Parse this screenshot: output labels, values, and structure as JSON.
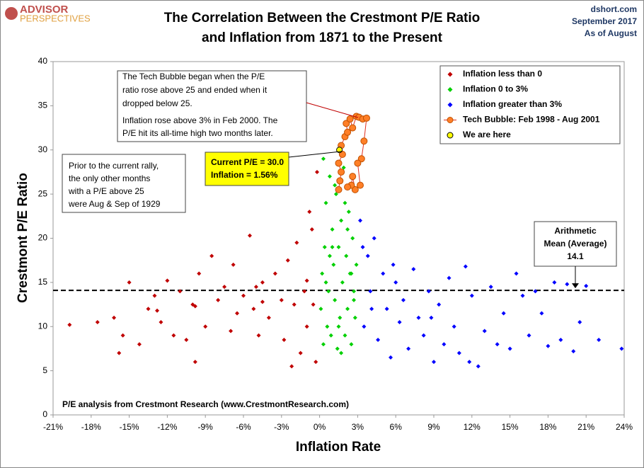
{
  "chart_data": {
    "type": "scatter",
    "title": [
      "The Correlation Between the Crestmont P/E Ratio",
      "and Inflation from 1871 to the Present"
    ],
    "brand": [
      "ADVISOR",
      "PERSPECTIVES"
    ],
    "header_right": [
      "dshort.com",
      "September 2017",
      "As of August"
    ],
    "x_label": "Inflation Rate",
    "y_label": "Crestmont  P/E  Ratio",
    "source": "P/E analysis from Crestmont Research (www.CrestmontResearch.com)",
    "xlim": [
      -21,
      24
    ],
    "ylim": [
      0,
      40
    ],
    "xticks": [
      {
        "value": -21,
        "label": "-21%"
      },
      {
        "value": -18,
        "label": "-18%"
      },
      {
        "value": -15,
        "label": "-15%"
      },
      {
        "value": -12,
        "label": "-12%"
      },
      {
        "value": -9,
        "label": "-9%"
      },
      {
        "value": -6,
        "label": "-6%"
      },
      {
        "value": -3,
        "label": "-3%"
      },
      {
        "value": 0,
        "label": "0%"
      },
      {
        "value": 3,
        "label": "3%"
      },
      {
        "value": 6,
        "label": "6%"
      },
      {
        "value": 9,
        "label": "9%"
      },
      {
        "value": 12,
        "label": "12%"
      },
      {
        "value": 15,
        "label": "15%"
      },
      {
        "value": 18,
        "label": "18%"
      },
      {
        "value": 21,
        "label": "21%"
      },
      {
        "value": 24,
        "label": "24%"
      }
    ],
    "yticks": [
      0,
      5,
      10,
      15,
      20,
      25,
      30,
      35,
      40
    ],
    "grid": false,
    "legend": "upper right",
    "mean": 14.1,
    "mean_label": [
      "Arithmetic",
      "Mean (Average)"
    ],
    "annotations": {
      "tech_bubble": [
        "The Tech Bubble began when the P/E",
        "ratio rose above 25 and ended when it",
        "dropped below 25.",
        "Inflation rose above 3% in Feb 2000.  The",
        "P/E hit its all-time high two months later."
      ],
      "prior_rally": [
        "Prior to the current rally,",
        "the only other months",
        "with a P/E above 25",
        "were Aug & Sep of 1929"
      ],
      "current": [
        "Current P/E = 30.0",
        "Inflation = 1.56%"
      ]
    },
    "series": [
      {
        "name": "Inflation less than 0",
        "color": "#c00000",
        "marker": "diamond",
        "x": [
          -19.7,
          -17.5,
          -16.2,
          -15.8,
          -15,
          -14.2,
          -13.5,
          -13,
          -12.5,
          -12,
          -11.5,
          -11,
          -10.5,
          -10,
          -9.8,
          -9.5,
          -9,
          -8.5,
          -8,
          -7.5,
          -7,
          -6.8,
          -6.5,
          -6,
          -5.5,
          -5.2,
          -5,
          -4.8,
          -4.5,
          -4,
          -3.5,
          -3,
          -2.8,
          -2.5,
          -2,
          -1.8,
          -1.5,
          -1.2,
          -1,
          -0.8,
          -0.5,
          -0.3,
          -0.2,
          -2.2,
          -4.5,
          -9.8,
          -12.8,
          -15.5,
          -1,
          -0.6
        ],
        "values": [
          10.2,
          10.5,
          11,
          7,
          15,
          8,
          12,
          13.5,
          10.5,
          15.2,
          9,
          14,
          8.5,
          12.5,
          6,
          16,
          10,
          18,
          13,
          14.5,
          9.5,
          17,
          11.5,
          13.5,
          20.3,
          12,
          14.5,
          9,
          15,
          11,
          16,
          13,
          8.5,
          17.5,
          12.5,
          19.5,
          7,
          14,
          10,
          23,
          12.5,
          6,
          27.5,
          5.5,
          12.8,
          12.3,
          11.8,
          9,
          15.2,
          21
        ]
      },
      {
        "name": "Inflation  0 to 3%",
        "color": "#00d000",
        "marker": "diamond",
        "x": [
          0.1,
          0.2,
          0.3,
          0.4,
          0.5,
          0.6,
          0.7,
          0.8,
          0.9,
          1.0,
          1.1,
          1.2,
          1.3,
          1.4,
          1.5,
          1.6,
          1.7,
          1.8,
          1.9,
          2.0,
          2.1,
          2.2,
          2.3,
          2.4,
          2.5,
          2.6,
          2.7,
          2.8,
          2.9,
          0.3,
          0.8,
          1.2,
          1.7,
          2.2,
          2.7,
          0.5,
          1.0,
          1.5,
          2.0,
          2.5
        ],
        "values": [
          12,
          16,
          8,
          19,
          24,
          10,
          14,
          27,
          9,
          21,
          17,
          13,
          25,
          7.5,
          19,
          11,
          22,
          15,
          28,
          9,
          18,
          12,
          23,
          16,
          8,
          20,
          14,
          11,
          17,
          29,
          18,
          26,
          7,
          21,
          13,
          15,
          19,
          10,
          24,
          16
        ]
      },
      {
        "name": "Inflation greater than 3%",
        "color": "#0000ff",
        "marker": "diamond",
        "x": [
          3.2,
          3.5,
          3.8,
          4,
          4.3,
          4.6,
          5,
          5.3,
          5.6,
          6,
          6.3,
          6.6,
          7,
          7.4,
          7.8,
          8.2,
          8.6,
          9,
          9.4,
          9.8,
          10.2,
          10.6,
          11,
          11.5,
          12,
          12.5,
          13,
          13.5,
          14,
          14.5,
          15,
          15.5,
          16,
          16.5,
          17,
          17.5,
          18,
          18.5,
          19,
          19.5,
          20,
          20.5,
          21,
          22,
          23.8,
          3.4,
          4.1,
          5.8,
          8.8,
          11.8
        ],
        "values": [
          22,
          10,
          18,
          14,
          20,
          8.5,
          16,
          12,
          6.5,
          15,
          10.5,
          13,
          7.5,
          16.5,
          11,
          9,
          14,
          6,
          12.5,
          8,
          15.5,
          10,
          7,
          16.8,
          13.5,
          5.5,
          9.5,
          14.5,
          8,
          11.5,
          7.5,
          16,
          13.5,
          9,
          14,
          11.5,
          7.8,
          15,
          8.5,
          14.8,
          7.2,
          10.5,
          14.6,
          8.5,
          7.5,
          19,
          12,
          17,
          11,
          6
        ]
      },
      {
        "name": "Tech Bubble: Feb 1998 - Aug 2001",
        "color": "#ff7f27",
        "marker": "circle-line",
        "x": [
          1.5,
          1.6,
          1.7,
          1.5,
          1.8,
          1.7,
          2.0,
          2.2,
          2.1,
          2.4,
          2.6,
          2.9,
          3.1,
          3.4,
          3.7,
          3.5,
          3.3,
          3.0,
          3.2,
          2.8,
          2.6,
          2.5,
          2.2
        ],
        "values": [
          25.5,
          26.5,
          27.5,
          28.5,
          29.5,
          30.5,
          31.5,
          32,
          33,
          33.5,
          32.5,
          33.8,
          33.7,
          33.5,
          33.6,
          31,
          29,
          28.5,
          26,
          25.5,
          27,
          26,
          25.8
        ]
      },
      {
        "name": "We are here",
        "color": "#ffff00",
        "marker": "circle",
        "x": [
          1.56
        ],
        "values": [
          30.0
        ]
      }
    ]
  }
}
